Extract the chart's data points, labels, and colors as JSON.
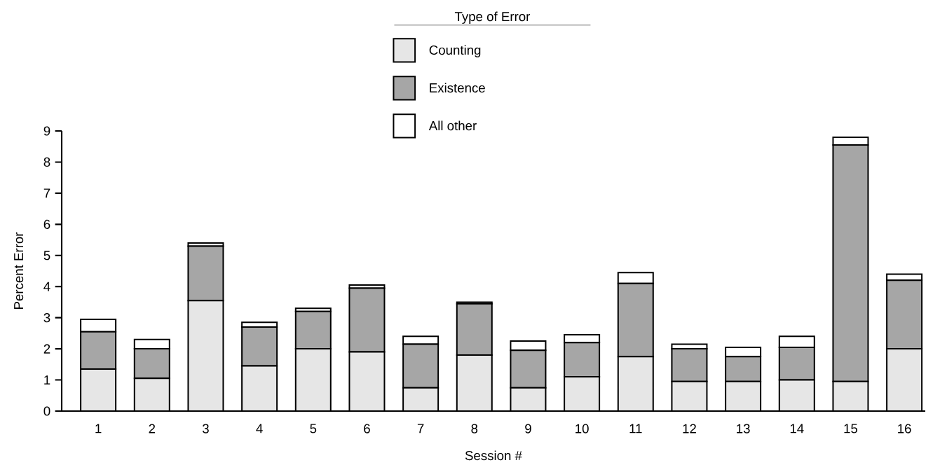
{
  "chart_data": {
    "type": "bar",
    "stacked": true,
    "xlabel": "Session #",
    "ylabel": "Percent Error",
    "legend_title": "Type of Error",
    "legend": "top",
    "categories": [
      "1",
      "2",
      "3",
      "4",
      "5",
      "6",
      "7",
      "8",
      "9",
      "10",
      "11",
      "12",
      "13",
      "14",
      "15",
      "16"
    ],
    "series": [
      {
        "name": "Counting",
        "color": "#e6e6e6",
        "values": [
          1.35,
          1.05,
          3.55,
          1.45,
          2.0,
          1.9,
          0.75,
          1.8,
          0.75,
          1.1,
          1.75,
          0.95,
          0.95,
          1.0,
          0.95,
          2.0
        ]
      },
      {
        "name": "Existence",
        "color": "#a6a6a6",
        "values": [
          1.2,
          0.95,
          1.75,
          1.25,
          1.2,
          2.05,
          1.4,
          1.65,
          1.2,
          1.1,
          2.35,
          1.05,
          0.8,
          1.05,
          7.6,
          2.2
        ]
      },
      {
        "name": "All other",
        "color": "#ffffff",
        "values": [
          0.4,
          0.3,
          0.1,
          0.15,
          0.1,
          0.1,
          0.25,
          0.05,
          0.3,
          0.25,
          0.35,
          0.15,
          0.3,
          0.35,
          0.25,
          0.2
        ]
      }
    ],
    "ylim": [
      0,
      9
    ],
    "yticks": [
      0,
      1,
      2,
      3,
      4,
      5,
      6,
      7,
      8,
      9
    ]
  }
}
